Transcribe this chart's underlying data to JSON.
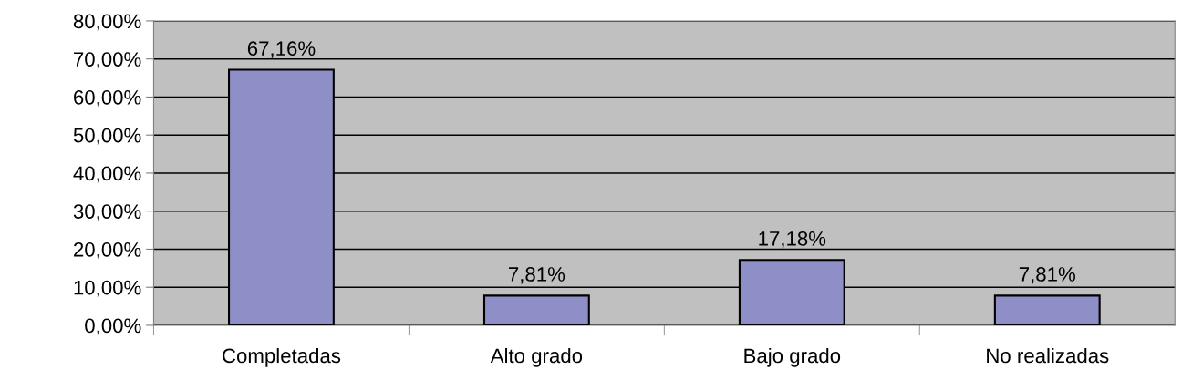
{
  "chart_data": {
    "type": "bar",
    "categories": [
      "Completadas",
      "Alto grado",
      "Bajo grado",
      "No realizadas"
    ],
    "values": [
      67.16,
      7.81,
      17.18,
      7.81
    ],
    "color": "#8f8fc8",
    "value_labels": [
      "67,16%",
      "7,81%",
      "17,18%",
      "7,81%"
    ],
    "ylim": [
      0,
      80
    ],
    "yticks": [
      {
        "value": 0,
        "label": "0,00%"
      },
      {
        "value": 10,
        "label": "10,00%"
      },
      {
        "value": 20,
        "label": "20,00%"
      },
      {
        "value": 30,
        "label": "30,00%"
      },
      {
        "value": 40,
        "label": "40,00%"
      },
      {
        "value": 50,
        "label": "50,00%"
      },
      {
        "value": 60,
        "label": "60,00%"
      },
      {
        "value": 70,
        "label": "70,00%"
      },
      {
        "value": 80,
        "label": "80,00%"
      }
    ],
    "grid": "y",
    "legend": false
  }
}
